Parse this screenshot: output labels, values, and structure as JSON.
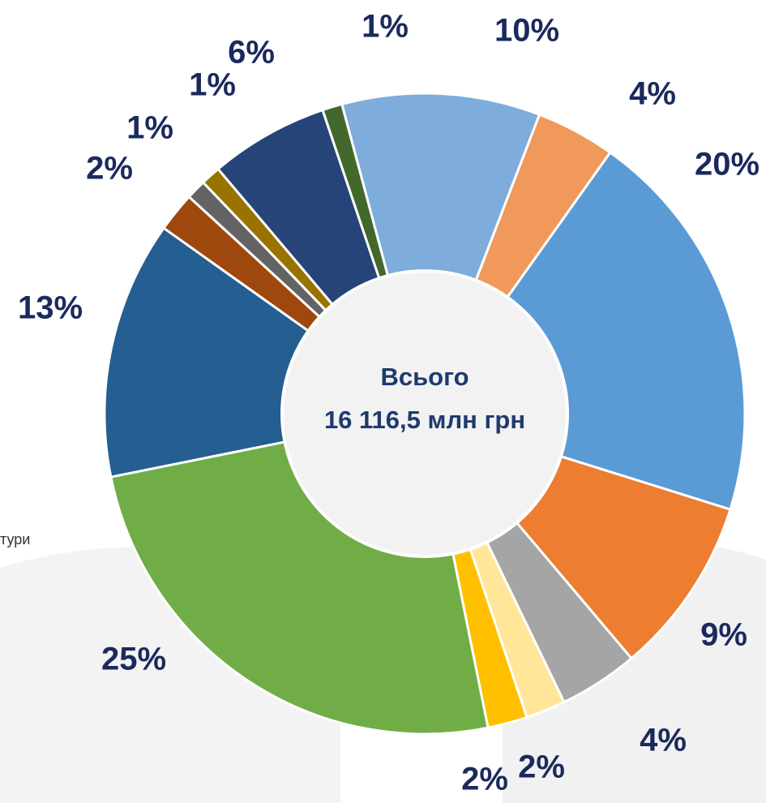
{
  "chart_data": {
    "type": "donut",
    "center_title": "Всього",
    "center_total": "16 116,5 млн грн",
    "cropped_text": "тури",
    "values": [
      10,
      4,
      20,
      9,
      4,
      2,
      2,
      25,
      13,
      2,
      1,
      1,
      6,
      1
    ],
    "value_labels": [
      "10%",
      "4%",
      "20%",
      "9%",
      "4%",
      "2%",
      "2%",
      "25%",
      "13%",
      "2%",
      "1%",
      "1%",
      "6%",
      "1%"
    ],
    "colors": [
      "#7eaddc",
      "#f0995b",
      "#5b9bd5",
      "#ed7d31",
      "#a5a5a5",
      "#ffe699",
      "#ffc000",
      "#70ad47",
      "#255e91",
      "#9e480e",
      "#636363",
      "#997300",
      "#264478",
      "#43682b"
    ]
  }
}
